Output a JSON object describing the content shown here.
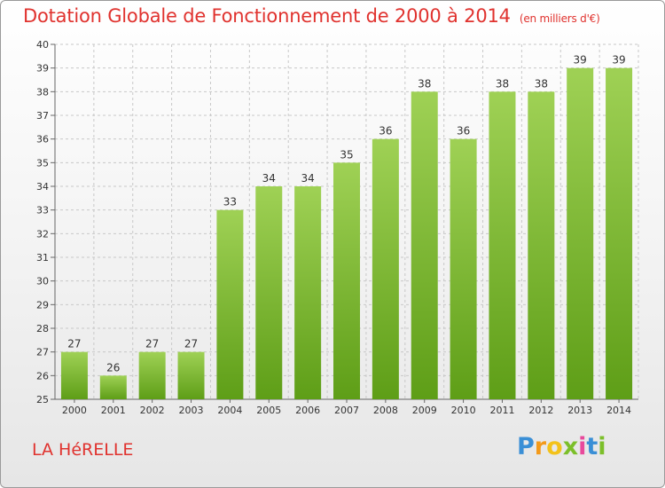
{
  "header": {
    "title": "Dotation Globale de Fonctionnement de 2000 à 2014",
    "unit": "(en milliers d'€)"
  },
  "footer": {
    "commune": "LA HéRELLE",
    "logo": "Proxiti"
  },
  "colors": {
    "title": "#e0322e",
    "bar_top": "#9fd155",
    "bar_bottom": "#5e9e17",
    "grid": "#c8c8c8"
  },
  "chart_data": {
    "type": "bar",
    "title": "Dotation Globale de Fonctionnement de 2000 à 2014",
    "subtitle": "(en milliers d'€)",
    "xlabel": "",
    "ylabel": "",
    "categories": [
      "2000",
      "2001",
      "2002",
      "2003",
      "2004",
      "2005",
      "2006",
      "2007",
      "2008",
      "2009",
      "2010",
      "2011",
      "2012",
      "2013",
      "2014"
    ],
    "values": [
      27,
      26,
      27,
      27,
      33,
      34,
      34,
      35,
      36,
      38,
      36,
      38,
      38,
      39,
      39
    ],
    "ylim": [
      25,
      40
    ],
    "yticks": [
      25,
      26,
      27,
      28,
      29,
      30,
      31,
      32,
      33,
      34,
      35,
      36,
      37,
      38,
      39,
      40
    ],
    "grid": "horizontal dashed",
    "legend": "none"
  }
}
